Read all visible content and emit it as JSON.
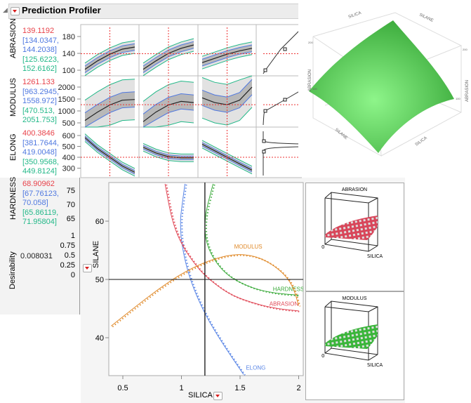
{
  "header": {
    "title": "Prediction Profiler",
    "icon": "disclosure-triangle",
    "menu_icon": "red-triangle-menu"
  },
  "colors": {
    "prediction": "#e8424a",
    "confidence": "#4f78e0",
    "prediction_interval": "#22b888",
    "abrasion": "#e04856",
    "elong": "#5a86e6",
    "hardness": "#3aaa3a",
    "modulus": "#e08a2a",
    "surface": "#4cc44c"
  },
  "responses": [
    {
      "name": "ABRASION",
      "value": "139.1192",
      "ci": [
        "[134.0347,",
        "144.2038]"
      ],
      "pi": [
        "[125.6223,",
        "152.6162]"
      ],
      "ticks": [
        {
          "v": 100,
          "t": "100"
        },
        {
          "v": 140,
          "t": "140"
        },
        {
          "v": 180,
          "t": "180"
        }
      ],
      "current": 139.12,
      "curves": [
        [
          102,
          122,
          138,
          150,
          155
        ],
        [
          102,
          122,
          140,
          152,
          160
        ],
        [
          118,
          128,
          138,
          146,
          152
        ]
      ],
      "ci_half": 8,
      "pi_half": 15
    },
    {
      "name": "MODULUS",
      "value": "1261.133",
      "ci": [
        "[963.2945,",
        "1558.972]"
      ],
      "pi": [
        "[470.513,",
        "2051.753]"
      ],
      "ticks": [
        {
          "v": 500,
          "t": "500"
        },
        {
          "v": 1000,
          "t": "1000"
        },
        {
          "v": 1500,
          "t": "1500"
        },
        {
          "v": 2000,
          "t": "2000"
        }
      ],
      "current": 1261.13,
      "curves": [
        [
          600,
          950,
          1250,
          1450,
          1480
        ],
        [
          550,
          950,
          1250,
          1400,
          1350
        ],
        [
          1550,
          1350,
          1260,
          1450,
          2000
        ]
      ],
      "ci_half": 320,
      "pi_half": 850
    },
    {
      "name": "ELONG",
      "value": "400.3846",
      "ci": [
        "[381.7644,",
        "419.0048]"
      ],
      "pi": [
        "[350.9568,",
        "449.8124]"
      ],
      "ticks": [
        {
          "v": 300,
          "t": "300"
        },
        {
          "v": 400,
          "t": "400"
        },
        {
          "v": 500,
          "t": "500"
        },
        {
          "v": 600,
          "t": "600"
        }
      ],
      "current": 400.38,
      "curves": [
        [
          580,
          480,
          400,
          320,
          262
        ],
        [
          492,
          440,
          405,
          395,
          395
        ],
        [
          520,
          460,
          400,
          340,
          282
        ]
      ],
      "ci_half": 16,
      "pi_half": 35
    },
    {
      "name": "HARDNESS",
      "value": "68.90962",
      "ci": [
        "[67.76123,",
        "70.058]"
      ],
      "pi": [
        "[65.86119,",
        "71.95804]"
      ],
      "ticks": [
        {
          "t": "75"
        },
        {
          "t": "70"
        },
        {
          "t": "65"
        }
      ]
    }
  ],
  "desirability": {
    "label": "Desirability",
    "value": "0.008031",
    "ticks": [
      "1",
      "0.75",
      "0.5",
      "0.25",
      "0"
    ]
  },
  "chart_data": {
    "type": "line",
    "title": "",
    "xlabel": "SILICA",
    "ylabel": "SILANE",
    "xlim": [
      0.4,
      2.0
    ],
    "ylim": [
      33,
      67
    ],
    "xticks": [
      {
        "v": 0.5,
        "t": "0.5"
      },
      {
        "v": 1,
        "t": "1"
      },
      {
        "v": 1.5,
        "t": "1.5"
      },
      {
        "v": 2,
        "t": "2"
      }
    ],
    "yticks": [
      {
        "v": 40,
        "t": "40"
      },
      {
        "v": 50,
        "t": "50"
      },
      {
        "v": 60,
        "t": "60"
      }
    ],
    "crosshair": {
      "silica": 1.2,
      "silane": 50
    },
    "series": [
      {
        "name": "ELONG",
        "color": "#5a86e6",
        "points": [
          [
            1.03,
            66.4
          ],
          [
            1.0,
            62
          ],
          [
            0.99,
            60
          ],
          [
            1.0,
            56
          ],
          [
            1.07,
            50
          ],
          [
            1.2,
            44
          ],
          [
            1.35,
            39
          ],
          [
            1.53,
            33.7
          ]
        ]
      },
      {
        "name": "ABRASION",
        "color": "#e04856",
        "points": [
          [
            0.86,
            66.4
          ],
          [
            0.92,
            60
          ],
          [
            1.0,
            56
          ],
          [
            1.1,
            53
          ],
          [
            1.2,
            50.6
          ],
          [
            1.4,
            47.5
          ],
          [
            1.6,
            46
          ],
          [
            1.8,
            45
          ],
          [
            2.0,
            44.6
          ]
        ]
      },
      {
        "name": "HARDNESS",
        "color": "#3aaa3a",
        "points": [
          [
            1.27,
            66.4
          ],
          [
            1.2,
            61
          ],
          [
            1.2,
            57
          ],
          [
            1.27,
            53.5
          ],
          [
            1.4,
            50.5
          ],
          [
            1.6,
            48.5
          ],
          [
            1.8,
            47.6
          ],
          [
            2.0,
            47.3
          ]
        ]
      },
      {
        "name": "MODULUS",
        "color": "#e08a2a",
        "points": [
          [
            0.4,
            42
          ],
          [
            0.6,
            45.2
          ],
          [
            0.8,
            48.3
          ],
          [
            1.0,
            51
          ],
          [
            1.2,
            53
          ],
          [
            1.4,
            54.2
          ],
          [
            1.55,
            54.3
          ],
          [
            1.7,
            53.5
          ],
          [
            1.85,
            51.5
          ],
          [
            1.95,
            49
          ],
          [
            2.0,
            45.5
          ]
        ]
      }
    ]
  },
  "surface3d": {
    "axes": {
      "x": "SILICA",
      "y": "SILANE",
      "z": "ABRASION"
    },
    "ticks": {
      "z": [
        "100",
        "200"
      ],
      "silane": [
        "35",
        "40",
        "45",
        "50",
        "55",
        "60"
      ],
      "silica": [
        "1",
        "2"
      ]
    }
  },
  "mini_surfaces": [
    {
      "title": "ABRASION",
      "color": "#d8465a",
      "xlabel": "SILICA",
      "zero": "0"
    },
    {
      "title": "MODULUS",
      "color": "#3ab53a",
      "xlabel": "SILICA",
      "zero": "0"
    }
  ]
}
